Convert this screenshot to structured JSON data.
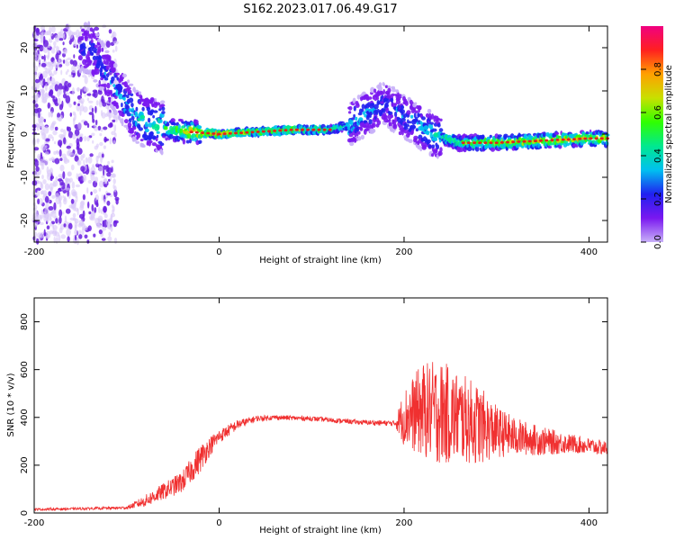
{
  "title": "S162.2023.017.06.49.G17",
  "colors": {
    "snr_line": "#f03030",
    "ridge_core": "#e02020",
    "speckle": "#6a1ee0",
    "speckle_faint": "#d8c8f8"
  },
  "chart_data": [
    {
      "type": "heatmap",
      "xlabel": "Height of straight line (km)",
      "ylabel": "Frequency (Hz)",
      "xlim": [
        -200,
        420
      ],
      "ylim": [
        -25,
        25
      ],
      "xticks": [
        -200,
        0,
        200,
        400
      ],
      "yticks": [
        -20,
        -10,
        0,
        10,
        20
      ],
      "colorbar": {
        "label": "Normalized spectral amplitude",
        "range": [
          0,
          1
        ],
        "ticks": [
          "0.0",
          "0.2",
          "0.4",
          "0.6",
          "0.8"
        ],
        "tick_values": [
          0,
          0.2,
          0.4,
          0.6,
          0.8
        ],
        "colormap": [
          "#c8b0f8",
          "#7a18f0",
          "#2020f0",
          "#00c0f0",
          "#00e890",
          "#30ff00",
          "#c8e000",
          "#ffa000",
          "#ff2020",
          "#f00080"
        ]
      },
      "ridge": {
        "x": [
          -140,
          -110,
          -90,
          -70,
          -50,
          -30,
          0,
          40,
          80,
          120,
          140,
          160,
          180,
          200,
          230,
          260,
          300,
          350,
          400,
          420
        ],
        "freq_hz": [
          20,
          10,
          4,
          2,
          1,
          0.5,
          0,
          0.5,
          1,
          1,
          2,
          5,
          7,
          4,
          0,
          -2,
          -2,
          -1.5,
          -1,
          -1
        ],
        "amplitude": [
          0.25,
          0.35,
          0.45,
          0.5,
          0.6,
          0.9,
          0.98,
          0.7,
          0.75,
          0.6,
          0.45,
          0.35,
          0.3,
          0.35,
          0.45,
          0.6,
          0.8,
          0.85,
          0.8,
          0.85
        ]
      }
    },
    {
      "type": "line",
      "xlabel": "Height of straight line (km)",
      "ylabel": "SNR (10 * v/v)",
      "xlim": [
        -200,
        420
      ],
      "ylim": [
        0,
        900
      ],
      "xticks": [
        -200,
        0,
        200,
        400
      ],
      "yticks": [
        0,
        200,
        400,
        600,
        800
      ],
      "series": [
        {
          "x": [
            -200,
            -150,
            -100,
            -80,
            -60,
            -40,
            -20,
            -10,
            0,
            20,
            40,
            60,
            100,
            150,
            190,
            200,
            220,
            240,
            260,
            280,
            300,
            320,
            350,
            380,
            420
          ],
          "y": [
            15,
            18,
            22,
            50,
            90,
            130,
            230,
            280,
            320,
            370,
            395,
            400,
            395,
            380,
            375,
            400,
            430,
            420,
            400,
            370,
            340,
            320,
            300,
            290,
            270
          ],
          "fluctuation": [
            5,
            5,
            6,
            25,
            35,
            45,
            60,
            40,
            30,
            20,
            12,
            10,
            10,
            10,
            12,
            120,
            200,
            220,
            190,
            170,
            110,
            80,
            60,
            40,
            30
          ]
        }
      ]
    }
  ]
}
